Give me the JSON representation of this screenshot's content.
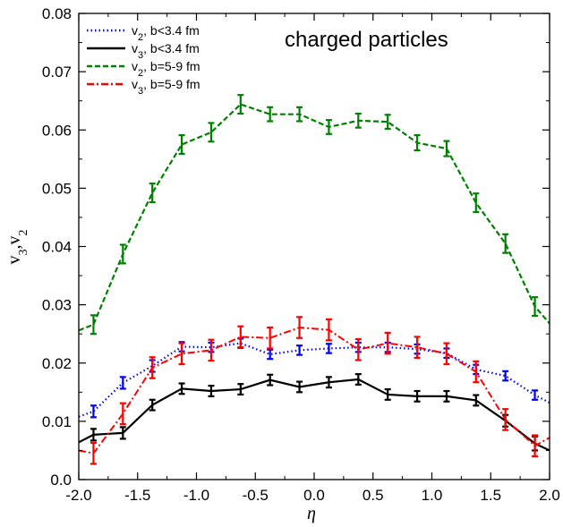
{
  "chart_data": {
    "type": "line",
    "title": "",
    "annotation": "charged particles",
    "xlabel": "η",
    "ylabel": "v3,v2",
    "xlim": [
      -2.0,
      2.0
    ],
    "ylim": [
      0.0,
      0.08
    ],
    "xticks": [
      "-2.0",
      "-1.5",
      "-1.0",
      "-0.5",
      "0.0",
      "0.5",
      "1.0",
      "1.5",
      "2.0"
    ],
    "yticks": [
      "0.0",
      "0.01",
      "0.02",
      "0.03",
      "0.04",
      "0.05",
      "0.06",
      "0.07",
      "0.08"
    ],
    "grid": false,
    "legend_position": "top-left",
    "x": [
      -1.875,
      -1.625,
      -1.375,
      -1.125,
      -0.875,
      -0.625,
      -0.375,
      -0.125,
      0.125,
      0.375,
      0.625,
      0.875,
      1.125,
      1.375,
      1.625,
      1.875
    ],
    "series": [
      {
        "name": "v2, b<3.4 fm",
        "color": "#0000ff",
        "style": "dotted",
        "values": [
          0.0117,
          0.0166,
          0.0195,
          0.0228,
          0.0227,
          0.0234,
          0.0215,
          0.0222,
          0.0225,
          0.0227,
          0.0227,
          0.0224,
          0.0217,
          0.0189,
          0.0178,
          0.0145
        ],
        "errors": [
          0.001,
          0.001,
          0.001,
          0.0008,
          0.0008,
          0.0008,
          0.0008,
          0.0008,
          0.0008,
          0.0008,
          0.0008,
          0.0008,
          0.0008,
          0.0008,
          0.0008,
          0.0008
        ],
        "left_edge": 0.0108,
        "right_edge": 0.0132
      },
      {
        "name": "v3, b<3.4 fm",
        "color": "#000000",
        "style": "solid",
        "values": [
          0.0077,
          0.008,
          0.0128,
          0.0156,
          0.0152,
          0.0155,
          0.0171,
          0.0159,
          0.0167,
          0.0172,
          0.0146,
          0.0143,
          0.0143,
          0.0136,
          0.0101,
          0.0062
        ],
        "errors": [
          0.001,
          0.001,
          0.0009,
          0.0009,
          0.0009,
          0.0009,
          0.0009,
          0.0009,
          0.0009,
          0.0009,
          0.0009,
          0.0009,
          0.0009,
          0.0009,
          0.001,
          0.0012
        ],
        "left_edge": 0.0064,
        "right_edge": 0.005
      },
      {
        "name": "v2, b=5-9 fm",
        "color": "#008000",
        "style": "dashed",
        "values": [
          0.0266,
          0.0387,
          0.0492,
          0.0575,
          0.0596,
          0.0644,
          0.0627,
          0.0627,
          0.0605,
          0.0616,
          0.0614,
          0.0578,
          0.0568,
          0.0475,
          0.0405,
          0.0297
        ],
        "errors": [
          0.0016,
          0.0016,
          0.0016,
          0.0016,
          0.0016,
          0.0016,
          0.0012,
          0.0012,
          0.0012,
          0.0012,
          0.0012,
          0.0013,
          0.0013,
          0.0016,
          0.0016,
          0.0016
        ],
        "left_edge": 0.0256,
        "right_edge": 0.0268
      },
      {
        "name": "v3, b=5-9 fm",
        "color": "#ff0000",
        "style": "dashdot",
        "values": [
          0.0045,
          0.0113,
          0.0192,
          0.0216,
          0.0222,
          0.0245,
          0.0243,
          0.0261,
          0.0257,
          0.0223,
          0.0234,
          0.0227,
          0.0216,
          0.0185,
          0.0103,
          0.0058
        ],
        "errors": [
          0.0018,
          0.0018,
          0.0018,
          0.0018,
          0.0018,
          0.0018,
          0.0018,
          0.0018,
          0.0018,
          0.0018,
          0.0018,
          0.0018,
          0.0018,
          0.0018,
          0.0018,
          0.0018
        ],
        "left_edge": 0.005,
        "right_edge": 0.0072
      }
    ]
  }
}
